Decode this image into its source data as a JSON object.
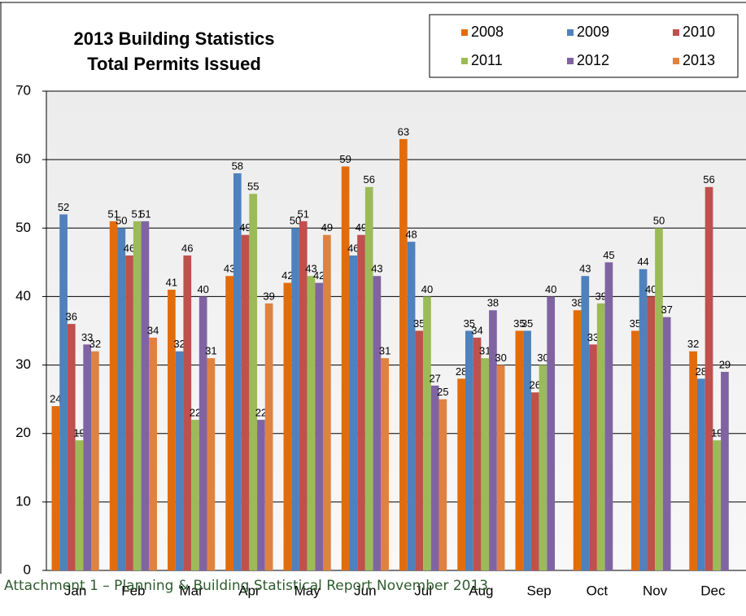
{
  "chart_data": {
    "type": "bar",
    "title": "2013 Building Statistics",
    "subtitle": "Total Permits Issued",
    "categories": [
      "Jan",
      "Feb",
      "Mar",
      "Apr",
      "May",
      "Jun",
      "Jul",
      "Aug",
      "Sep",
      "Oct",
      "Nov",
      "Dec"
    ],
    "series": [
      {
        "name": "2008",
        "color": "#e36c0a",
        "values": [
          24,
          51,
          41,
          43,
          42,
          59,
          63,
          28,
          35,
          38,
          35,
          32
        ]
      },
      {
        "name": "2009",
        "color": "#4f81bd",
        "values": [
          52,
          50,
          32,
          58,
          50,
          46,
          48,
          35,
          35,
          43,
          44,
          28
        ]
      },
      {
        "name": "2010",
        "color": "#c0504d",
        "values": [
          36,
          46,
          46,
          49,
          51,
          49,
          35,
          34,
          26,
          33,
          40,
          56
        ]
      },
      {
        "name": "2011",
        "color": "#9bbb59",
        "values": [
          19,
          51,
          22,
          55,
          43,
          56,
          40,
          31,
          30,
          39,
          50,
          19
        ]
      },
      {
        "name": "2012",
        "color": "#8064a2",
        "values": [
          33,
          51,
          40,
          22,
          42,
          43,
          27,
          38,
          40,
          45,
          37,
          29
        ]
      },
      {
        "name": "2013",
        "color": "#e0823f",
        "values": [
          32,
          34,
          31,
          39,
          49,
          31,
          25,
          30,
          null,
          null,
          null,
          null
        ]
      }
    ],
    "ylim": [
      0,
      70
    ],
    "yticks": [
      0,
      10,
      20,
      30,
      40,
      50,
      60,
      70
    ],
    "grid": true,
    "legend": "top-right"
  },
  "footer": "Attachment 1 – Planning & Building Statistical Report November 2013"
}
